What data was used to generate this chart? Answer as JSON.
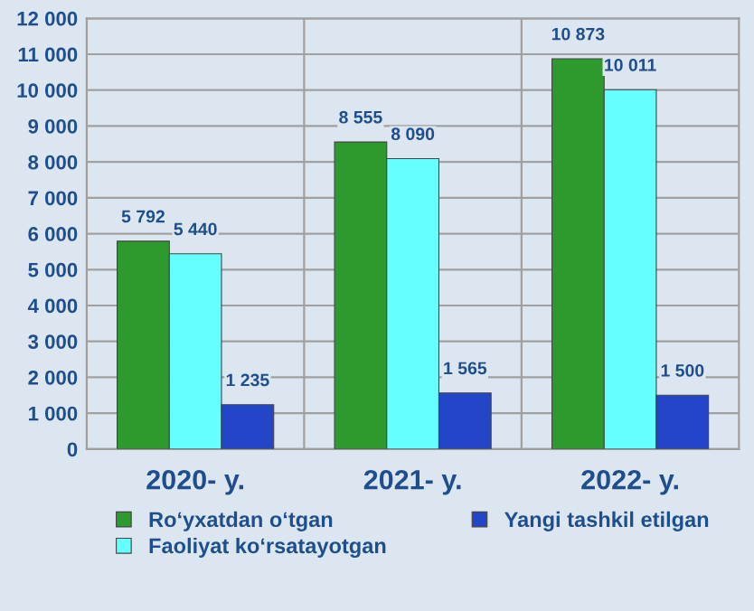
{
  "chart_data": {
    "type": "bar",
    "categories": [
      "2020- y.",
      "2021- y.",
      "2022- y."
    ],
    "series": [
      {
        "name": "Ro‘yxatdan o‘tgan",
        "color": "#2e9a2e",
        "values": [
          5792,
          8555,
          10873
        ],
        "value_labels": [
          "5 792",
          "8 555",
          "10 873"
        ]
      },
      {
        "name": "Faoliyat ko‘rsatayotgan",
        "color": "#66ffff",
        "values": [
          5440,
          8090,
          10011
        ],
        "value_labels": [
          "5 440",
          "8 090",
          "10 011"
        ]
      },
      {
        "name": "Yangi tashkil etilgan",
        "color": "#2346c8",
        "values": [
          1235,
          1565,
          1500
        ],
        "value_labels": [
          "1 235",
          "1 565",
          "1 500"
        ]
      }
    ],
    "ylim": [
      0,
      12000
    ],
    "yticks": [
      0,
      {
        "value": 1000,
        "label": "1 000"
      },
      {
        "value": 2000,
        "label": "2 000"
      },
      {
        "value": 3000,
        "label": "3 000"
      },
      {
        "value": 4000,
        "label": "4 000"
      },
      {
        "value": 5000,
        "label": "5 000"
      },
      {
        "value": 6000,
        "label": "6 000"
      },
      {
        "value": 7000,
        "label": "7 000"
      },
      {
        "value": 8000,
        "label": "8 000"
      },
      {
        "value": 9000,
        "label": "9 000"
      },
      {
        "value": 10000,
        "label": "10 000"
      },
      {
        "value": 11000,
        "label": "11 000"
      },
      {
        "value": 12000,
        "label": "12 000"
      }
    ],
    "grid": "y",
    "legend": "bottom"
  }
}
